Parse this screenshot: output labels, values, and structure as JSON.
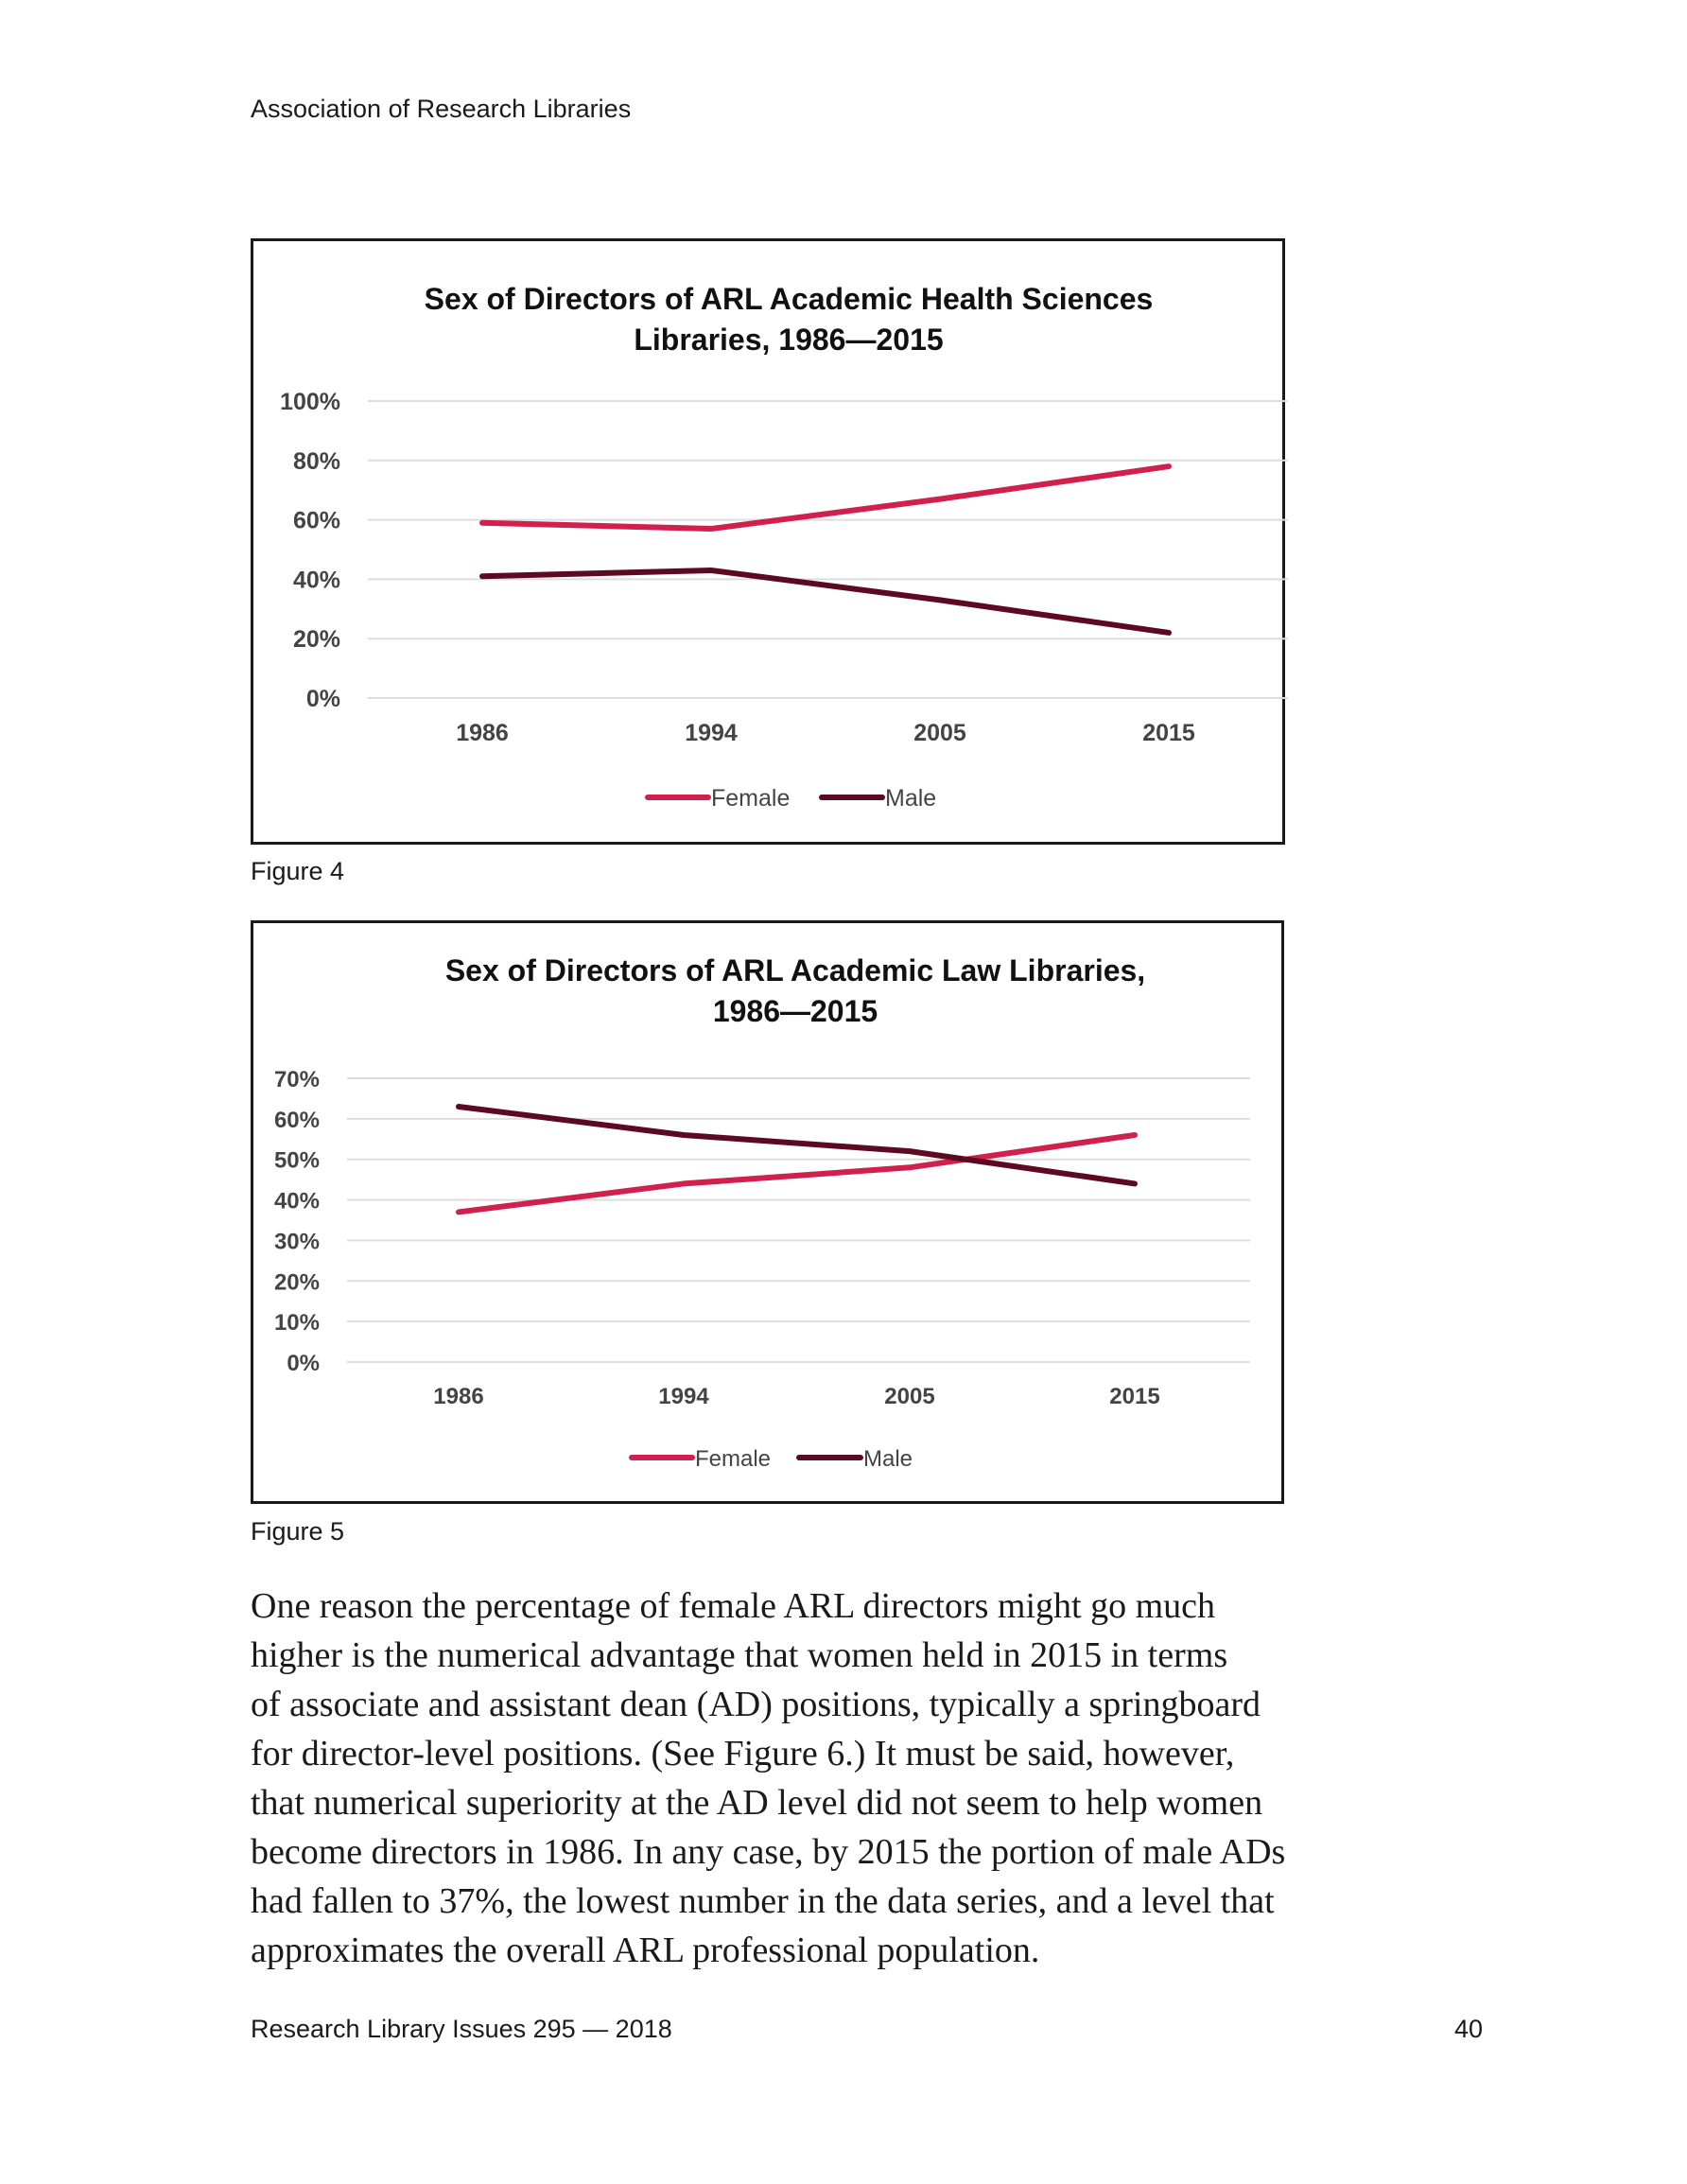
{
  "header": {
    "title": "Association of Research Libraries"
  },
  "figures": [
    {
      "caption": "Figure 4"
    },
    {
      "caption": "Figure 5"
    }
  ],
  "colors": {
    "female": "#d0204b",
    "male": "#5c0a22",
    "grid": "#dddddd",
    "axis_text": "#444444"
  },
  "chart_data": [
    {
      "type": "line",
      "title_lines": [
        "Sex of Directors of ARL Academic Health Sciences",
        "Libraries, 1986—2015"
      ],
      "categories": [
        "1986",
        "1994",
        "2005",
        "2015"
      ],
      "series": [
        {
          "name": "Female",
          "values": [
            59,
            57,
            67,
            78
          ]
        },
        {
          "name": "Male",
          "values": [
            41,
            43,
            33,
            22
          ]
        }
      ],
      "ylim": [
        0,
        100
      ],
      "yticks": [
        0,
        20,
        40,
        60,
        80,
        100
      ],
      "ytick_labels": [
        "0%",
        "20%",
        "40%",
        "60%",
        "80%",
        "100%"
      ],
      "xlabel": "",
      "ylabel": "",
      "grid": true,
      "legend": "bottom"
    },
    {
      "type": "line",
      "title_lines": [
        "Sex of Directors of ARL Academic Law Libraries,",
        "1986—2015"
      ],
      "categories": [
        "1986",
        "1994",
        "2005",
        "2015"
      ],
      "series": [
        {
          "name": "Female",
          "values": [
            37,
            44,
            48,
            56
          ]
        },
        {
          "name": "Male",
          "values": [
            63,
            56,
            52,
            44
          ]
        }
      ],
      "ylim": [
        0,
        70
      ],
      "yticks": [
        0,
        10,
        20,
        30,
        40,
        50,
        60,
        70
      ],
      "ytick_labels": [
        "0%",
        "10%",
        "20%",
        "30%",
        "40%",
        "50%",
        "60%",
        "70%"
      ],
      "xlabel": "",
      "ylabel": "",
      "grid": true,
      "legend": "bottom"
    }
  ],
  "body": {
    "lines": [
      "One reason the percentage of female ARL directors might go much",
      "higher is the numerical advantage that women held in 2015 in terms",
      "of associate and assistant dean (AD) positions, typically a springboard",
      "for director-level positions. (See Figure 6.) It must be said, however,",
      "that numerical superiority at the AD level did not seem to help women",
      "become directors in 1986. In any case, by 2015 the portion of male ADs",
      "had fallen to 37%, the lowest number in the data series, and a level that",
      "approximates the overall ARL professional population."
    ]
  },
  "footer": {
    "publication": "Research Library Issues 295 — 2018",
    "page_number": "40"
  }
}
